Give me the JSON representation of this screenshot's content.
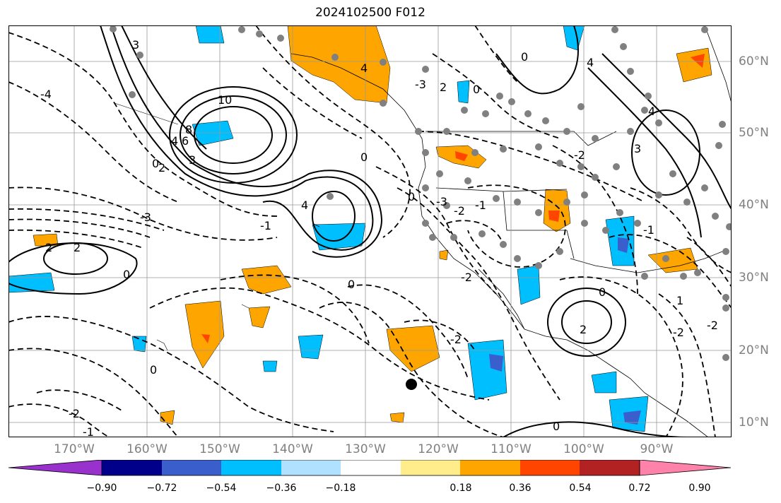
{
  "title": "2024102500 F012",
  "map": {
    "lat_labels": [
      "60°N",
      "50°N",
      "40°N",
      "30°N",
      "20°N",
      "10°N"
    ],
    "lon_labels": [
      "170°W",
      "160°W",
      "150°W",
      "140°W",
      "130°W",
      "120°W",
      "110°W",
      "100°W",
      "90°W"
    ],
    "contour_labels": [
      "10",
      "8",
      "6",
      "4",
      "3",
      "2",
      "1",
      "0",
      "-1",
      "-2",
      "-3",
      "-4"
    ],
    "colors": {
      "contour": "#000000",
      "grid": "#999999",
      "station": "#808080",
      "marker": "#000000"
    }
  },
  "colorbar": {
    "tick_labels": [
      "−0.90",
      "−0.72",
      "−0.54",
      "−0.36",
      "−0.18",
      "0.18",
      "0.36",
      "0.54",
      "0.72",
      "0.90"
    ],
    "colors": [
      "#9932cc",
      "#00008b",
      "#3a5fcd",
      "#00bfff",
      "#b0e2ff",
      "#ffffff",
      "#ffec8b",
      "#ffa500",
      "#ff4500",
      "#b22222",
      "#ff82ab"
    ]
  }
}
